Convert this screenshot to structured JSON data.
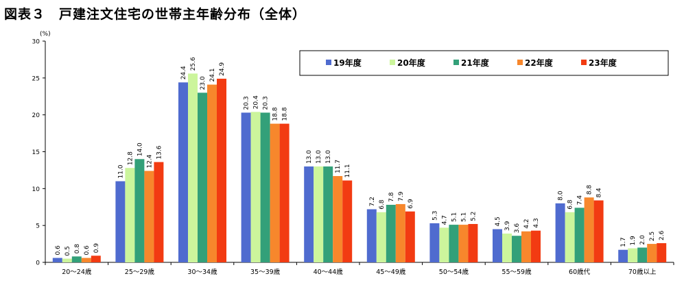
{
  "title": "図表３　戸建注文住宅の世帯主年齢分布（全体）",
  "chart_data": {
    "type": "bar",
    "ylabel": "(%)",
    "ylim": [
      0,
      30
    ],
    "yticks": [
      0,
      5,
      10,
      15,
      20,
      25,
      30
    ],
    "grid": false,
    "legend_position": "top-right",
    "categories": [
      "20～24歳",
      "25～29歳",
      "30～34歳",
      "35～39歳",
      "40～44歳",
      "45～49歳",
      "50～54歳",
      "55～59歳",
      "60歳代",
      "70歳以上"
    ],
    "series": [
      {
        "name": "19年度",
        "color": "#4F6BCF",
        "values": [
          0.6,
          11.0,
          24.4,
          20.3,
          13.0,
          7.2,
          5.3,
          4.5,
          8.0,
          1.7
        ]
      },
      {
        "name": "20年度",
        "color": "#CCF59C",
        "values": [
          0.5,
          12.8,
          25.6,
          20.4,
          13.0,
          6.8,
          4.7,
          3.9,
          6.8,
          1.9
        ]
      },
      {
        "name": "21年度",
        "color": "#33A079",
        "values": [
          0.8,
          14.0,
          23.0,
          20.3,
          13.0,
          7.8,
          5.1,
          3.6,
          7.4,
          2.0
        ]
      },
      {
        "name": "22年度",
        "color": "#F7872C",
        "values": [
          0.6,
          12.4,
          24.1,
          18.8,
          11.7,
          7.9,
          5.1,
          4.2,
          8.8,
          2.5
        ]
      },
      {
        "name": "23年度",
        "color": "#F23B12",
        "values": [
          0.9,
          13.6,
          24.9,
          18.8,
          11.1,
          6.9,
          5.2,
          4.3,
          8.4,
          2.6
        ]
      }
    ]
  }
}
